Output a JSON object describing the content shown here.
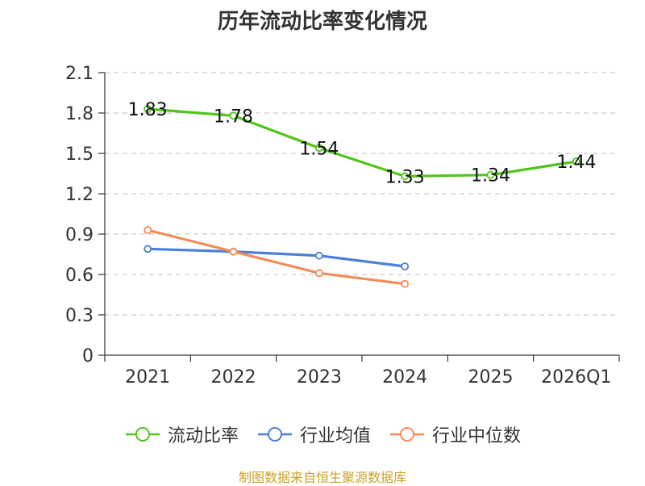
{
  "colors": {
    "series_current": "#52c41a",
    "series_avg": "#4a7fdc",
    "series_median": "#f28c58",
    "axis": "#333333",
    "grid": "#cccccc",
    "source": "#c9a227"
  },
  "chart_data": {
    "type": "line",
    "title": "历年流动比率变化情况",
    "categories": [
      "2021",
      "2022",
      "2023",
      "2024",
      "2025",
      "2026Q1"
    ],
    "ylim": [
      0,
      2.1
    ],
    "yticks": [
      "0",
      "0.3",
      "0.6",
      "0.9",
      "1.2",
      "1.5",
      "1.8",
      "2.1"
    ],
    "grid": true,
    "legend_position": "bottom-center",
    "series": [
      {
        "name": "流动比率",
        "values": [
          1.83,
          1.78,
          1.54,
          1.33,
          1.34,
          1.44
        ],
        "labels": [
          "1.83",
          "1.78",
          "1.54",
          "1.33",
          "1.34",
          "1.44"
        ]
      },
      {
        "name": "行业均值",
        "values": [
          0.79,
          0.77,
          0.74,
          0.66,
          null,
          null
        ]
      },
      {
        "name": "行业中位数",
        "values": [
          0.93,
          0.77,
          0.61,
          0.53,
          null,
          null
        ]
      }
    ]
  },
  "source": "制图数据来自恒生聚源数据库"
}
